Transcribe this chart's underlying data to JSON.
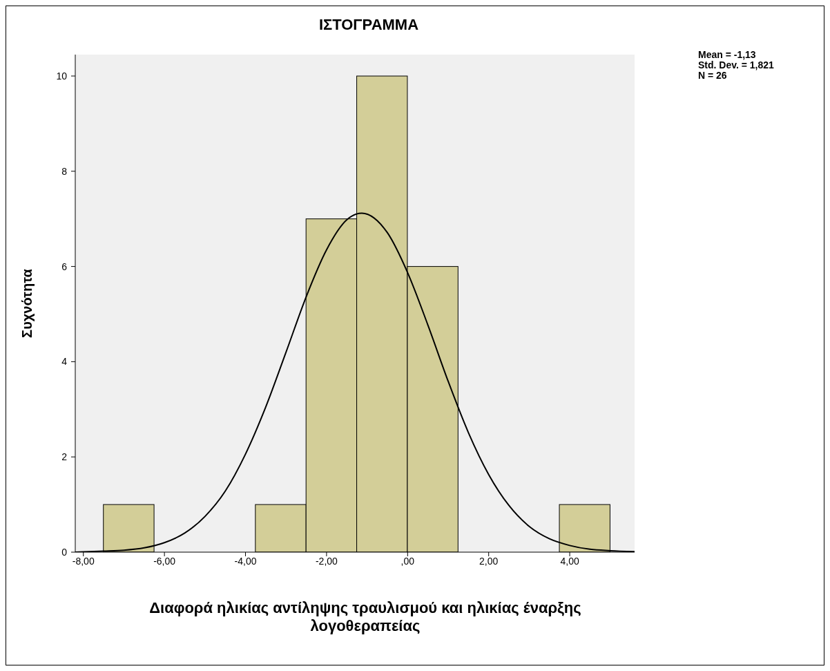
{
  "chart_data": {
    "type": "histogram",
    "title": "ΙΣΤΟΓΡΑΜΜΑ",
    "xlabel": "Διαφορά ηλικίας αντίληψης τραυλισμού και ηλικίας έναρξης λογοθεραπείας",
    "ylabel": "Συχνότητα",
    "bins": [
      -7.5,
      -6.25,
      -5,
      -3.75,
      -2.5,
      -1.25,
      0,
      1.25,
      2.5,
      3.75,
      5
    ],
    "values": [
      1,
      0,
      0,
      1,
      7,
      10,
      6,
      0,
      0,
      1
    ],
    "color": "#d3ce98",
    "series": [
      {
        "type": "line",
        "color": "#000000",
        "x": [
          -8.2,
          -7.5,
          -7,
          -6.5,
          -6,
          -5.5,
          -5,
          -4.5,
          -4,
          -3.5,
          -3,
          -2.5,
          -2,
          -1.5,
          -1.13,
          -0.5,
          0,
          0.5,
          1,
          1.5,
          2,
          2.5,
          3,
          3.5,
          4,
          4.5,
          5,
          5.6
        ],
        "values": [
          0,
          0.02,
          0.04,
          0.09,
          0.2,
          0.4,
          0.75,
          1.28,
          2.06,
          3.05,
          4.2,
          5.37,
          6.35,
          6.98,
          7.12,
          6.71,
          5.87,
          4.77,
          3.59,
          2.51,
          1.63,
          0.98,
          0.54,
          0.28,
          0.14,
          0.06,
          0.03,
          0.01
        ]
      }
    ],
    "xlim": [
      -8.2,
      5.6
    ],
    "xticks": [
      {
        "value": -8,
        "label": "-8,00"
      },
      {
        "value": -6,
        "label": "-6,00"
      },
      {
        "value": -4,
        "label": "-4,00"
      },
      {
        "value": -2,
        "label": "-2,00"
      },
      {
        "value": 0,
        "label": ",00"
      },
      {
        "value": 2,
        "label": "2,00"
      },
      {
        "value": 4,
        "label": "4,00"
      }
    ],
    "ylim": [
      0,
      10.45
    ],
    "yticks": [
      0,
      2,
      4,
      6,
      8,
      10
    ],
    "grid": false,
    "legend": false,
    "annotations": [
      "Mean = -1,13",
      "Std. Dev. = 1,821",
      "N = 26"
    ]
  }
}
